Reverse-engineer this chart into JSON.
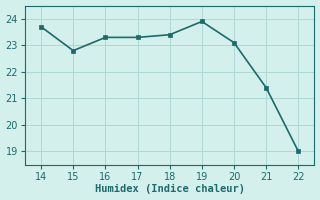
{
  "x": [
    14,
    15,
    16,
    17,
    18,
    19,
    20,
    21,
    22
  ],
  "y": [
    23.7,
    22.8,
    23.3,
    23.3,
    23.4,
    23.9,
    23.1,
    21.4,
    19.0
  ],
  "line_color": "#1a6b6b",
  "marker": "s",
  "marker_size": 2.5,
  "background_color": "#d4f0ec",
  "grid_color": "#aed8d4",
  "xlabel": "Humidex (Indice chaleur)",
  "xlabel_fontsize": 7.5,
  "xlim": [
    13.5,
    22.5
  ],
  "ylim": [
    18.5,
    24.5
  ],
  "xticks": [
    14,
    15,
    16,
    17,
    18,
    19,
    20,
    21,
    22
  ],
  "yticks": [
    19,
    20,
    21,
    22,
    23,
    24
  ],
  "tick_color": "#1a6b6b",
  "tick_fontsize": 7,
  "axis_color": "#1a6b6b",
  "linewidth": 1.2
}
